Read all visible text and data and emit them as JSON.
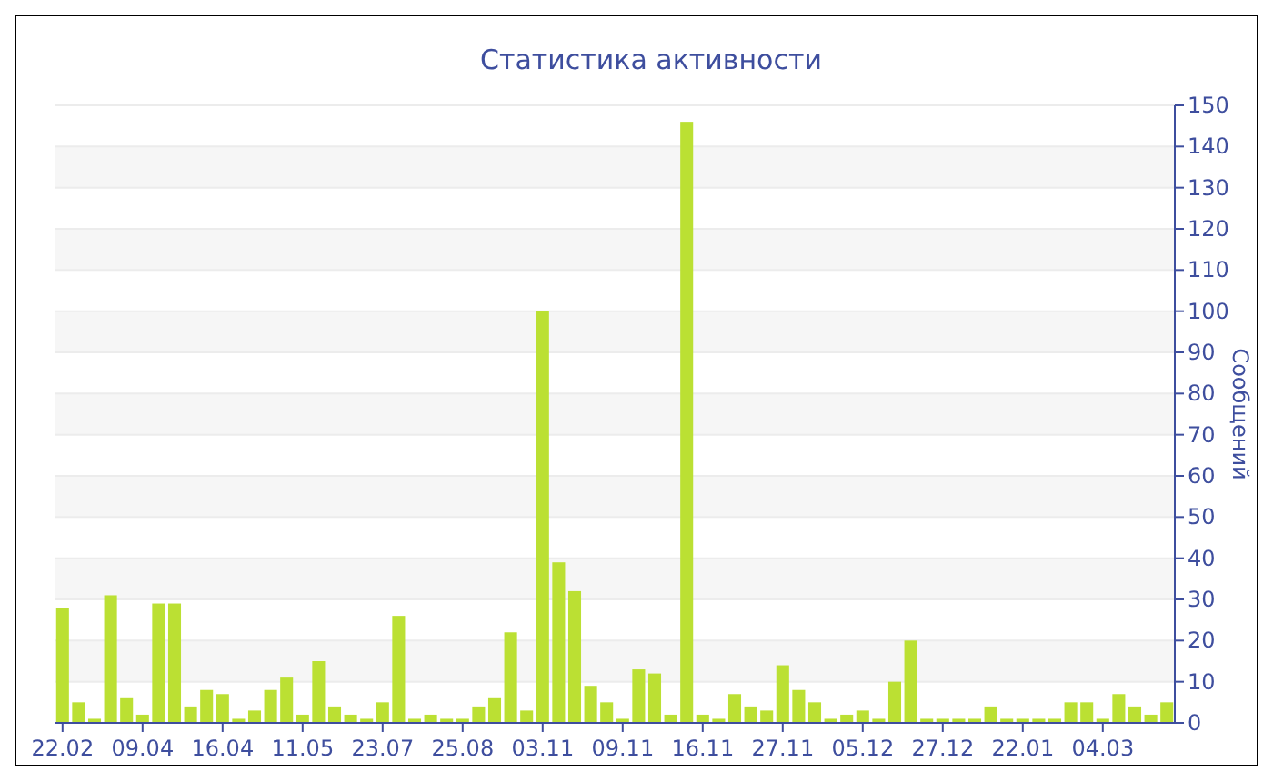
{
  "chart_data": {
    "type": "bar",
    "title": "Статистика активности",
    "ylabel": "Сообщений",
    "categories": [
      "22.02",
      null,
      null,
      null,
      null,
      "09.04",
      null,
      null,
      null,
      null,
      "16.04",
      null,
      null,
      null,
      null,
      "11.05",
      null,
      null,
      null,
      null,
      "23.07",
      null,
      null,
      null,
      null,
      "25.08",
      null,
      null,
      null,
      null,
      "03.11",
      null,
      null,
      null,
      null,
      "09.11",
      null,
      null,
      null,
      null,
      "16.11",
      null,
      null,
      null,
      null,
      "27.11",
      null,
      null,
      null,
      null,
      "05.12",
      null,
      null,
      null,
      null,
      "27.12",
      null,
      null,
      null,
      null,
      "22.01",
      null,
      null,
      null,
      null,
      "04.03",
      null,
      null,
      null,
      null
    ],
    "values": [
      28,
      5,
      1,
      31,
      6,
      2,
      29,
      29,
      4,
      8,
      7,
      1,
      3,
      8,
      11,
      2,
      15,
      4,
      2,
      1,
      5,
      26,
      1,
      2,
      1,
      1,
      4,
      6,
      22,
      3,
      100,
      39,
      32,
      9,
      5,
      1,
      13,
      12,
      2,
      146,
      2,
      1,
      7,
      4,
      3,
      14,
      8,
      5,
      1,
      2,
      3,
      1,
      10,
      20,
      1,
      1,
      1,
      1,
      4,
      1,
      1,
      1,
      1,
      5,
      5,
      1,
      7,
      4,
      2,
      5
    ],
    "color": "#bbe033",
    "ylim": [
      0,
      150
    ],
    "yticks": [
      0,
      10,
      20,
      30,
      40,
      50,
      60,
      70,
      80,
      90,
      100,
      110,
      120,
      130,
      140,
      150
    ],
    "grid": "y"
  }
}
